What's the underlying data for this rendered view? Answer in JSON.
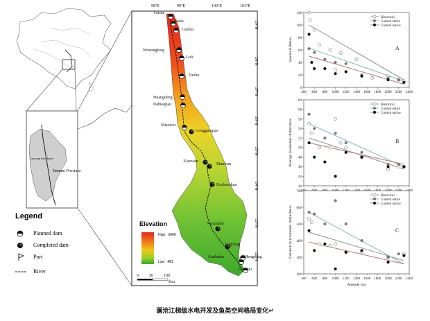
{
  "caption": "澜沧江梯级水电开发及鱼类空间格局变化↵",
  "map": {
    "lon_labels": [
      "98°E",
      "99°E",
      "100°E",
      "101°E"
    ],
    "lat_labels": [
      "29°N",
      "28°N",
      "27°N",
      "26°N",
      "25°N",
      "24°N",
      "23°N",
      "22°N"
    ],
    "province_label": "Yunnan Province",
    "basin_label": "Lancang river basin",
    "elevation_title": "Elevation",
    "elevation_high": "High : 5849",
    "elevation_low": "Low : 481",
    "scale_labels": [
      "0",
      "50",
      "100"
    ],
    "scale_unit": "Km",
    "sites": [
      {
        "name": "Gusue",
        "type": "planned"
      },
      {
        "name": "Baita",
        "type": "planned"
      },
      {
        "name": "Gushui",
        "type": "planned"
      },
      {
        "name": "Wunonglong",
        "type": "planned"
      },
      {
        "name": "Lidi",
        "type": "planned"
      },
      {
        "name": "Tuoba",
        "type": "planned"
      },
      {
        "name": "Huangdeng",
        "type": "planned"
      },
      {
        "name": "Dahuaqiao",
        "type": "planned"
      },
      {
        "name": "Miaowei",
        "type": "planned"
      },
      {
        "name": "Gongguoqiao",
        "type": "completed"
      },
      {
        "name": "Xiaowan",
        "type": "completed"
      },
      {
        "name": "Manwan",
        "type": "completed"
      },
      {
        "name": "Dachaoshan",
        "type": "completed"
      },
      {
        "name": "Nuozhadu",
        "type": "completed"
      },
      {
        "name": "Jinghong",
        "type": "completed"
      },
      {
        "name": "Ganlanba",
        "type": "planned"
      },
      {
        "name": "Mengsong",
        "type": "planned"
      },
      {
        "name": "Guanlei",
        "type": "planned"
      }
    ]
  },
  "legend": {
    "title": "Legend",
    "items": [
      {
        "label": "Planned dam",
        "icon": "half-filled-circle-icon"
      },
      {
        "label": "Completed dam",
        "icon": "filled-circle-icon"
      },
      {
        "label": "Port",
        "icon": "port-flag-icon"
      },
      {
        "label": "River",
        "icon": "river-line-icon"
      }
    ]
  },
  "chart_data": [
    {
      "type": "scatter",
      "panel": "A",
      "ylabel": "Species richness",
      "xlabel": "",
      "xlim": [
        400,
        2400
      ],
      "ylim": [
        0,
        120
      ],
      "xticks": [
        400,
        600,
        800,
        1000,
        1200,
        1400,
        1600,
        1800,
        2000,
        2200,
        2400
      ],
      "yticks": [
        0,
        20,
        40,
        60,
        80,
        100,
        120
      ],
      "legend": [
        "Historical",
        "Current entire",
        "Current native"
      ],
      "series": [
        {
          "name": "Historical",
          "color": "#8e8e8e",
          "marker": "open",
          "points": [
            [
              500,
              120
            ],
            [
              520,
              108
            ],
            [
              600,
              92
            ],
            [
              700,
              68
            ],
            [
              900,
              60
            ],
            [
              1000,
              28
            ],
            [
              1100,
              55
            ],
            [
              1400,
              45
            ],
            [
              1700,
              15
            ],
            [
              2000,
              18
            ],
            [
              2200,
              12
            ],
            [
              2300,
              10
            ]
          ],
          "trend": [
            [
              500,
              100
            ],
            [
              2300,
              12
            ]
          ]
        },
        {
          "name": "Current entire",
          "color": "#7fb8b0",
          "marker": "filled",
          "points": [
            [
              500,
              62
            ],
            [
              600,
              56
            ],
            [
              800,
              45
            ],
            [
              1000,
              40
            ],
            [
              1200,
              38
            ],
            [
              1500,
              20
            ],
            [
              2000,
              15
            ],
            [
              2200,
              12
            ]
          ],
          "trend": [
            [
              500,
              63
            ],
            [
              2300,
              10
            ]
          ]
        },
        {
          "name": "Current native",
          "color": "#b07474",
          "marker": "filled",
          "points": [
            [
              500,
              85
            ],
            [
              550,
              40
            ],
            [
              600,
              30
            ],
            [
              800,
              30
            ],
            [
              1000,
              22
            ],
            [
              1200,
              25
            ],
            [
              1500,
              18
            ],
            [
              2000,
              12
            ],
            [
              2300,
              8
            ]
          ],
          "trend": [
            [
              500,
              50
            ],
            [
              2300,
              5
            ]
          ]
        }
      ]
    },
    {
      "type": "scatter",
      "panel": "B",
      "ylabel": "Average taxonomic distinctness",
      "xlabel": "",
      "xlim": [
        400,
        2400
      ],
      "ylim": [
        42,
        60
      ],
      "xticks": [
        400,
        600,
        800,
        1000,
        1200,
        1400,
        1600,
        1800,
        2000,
        2200,
        2400
      ],
      "yticks": [
        42,
        44,
        46,
        48,
        50,
        52,
        54,
        56,
        58,
        60
      ],
      "legend": [
        "Historical",
        "Current entire",
        "Current native"
      ],
      "series": [
        {
          "name": "Historical",
          "color": "#8e8e8e",
          "marker": "open",
          "points": [
            [
              500,
              55
            ],
            [
              550,
              53
            ],
            [
              700,
              50
            ],
            [
              900,
              50
            ],
            [
              1000,
              56
            ],
            [
              1100,
              51
            ],
            [
              1200,
              50
            ],
            [
              1500,
              48
            ],
            [
              2000,
              45.5
            ],
            [
              2200,
              46
            ],
            [
              2300,
              46
            ]
          ],
          "trend": [
            [
              500,
              52
            ],
            [
              2300,
              45.5
            ]
          ]
        },
        {
          "name": "Current entire",
          "color": "#7fb8b0",
          "marker": "filled",
          "points": [
            [
              500,
              57
            ],
            [
              600,
              54
            ],
            [
              800,
              52
            ],
            [
              1000,
              53
            ],
            [
              1200,
              51
            ],
            [
              1500,
              49
            ],
            [
              2000,
              46.5
            ],
            [
              2200,
              46.5
            ]
          ],
          "trend": [
            [
              500,
              55
            ],
            [
              2300,
              46
            ]
          ]
        },
        {
          "name": "Current native",
          "color": "#b07474",
          "marker": "filled",
          "points": [
            [
              500,
              51
            ],
            [
              600,
              48
            ],
            [
              800,
              47
            ],
            [
              1000,
              44
            ],
            [
              1200,
              49
            ],
            [
              1500,
              48
            ],
            [
              2000,
              46
            ],
            [
              2300,
              46
            ]
          ],
          "trend": [
            [
              500,
              51
            ],
            [
              2300,
              46.5
            ]
          ]
        }
      ]
    },
    {
      "type": "scatter",
      "panel": "C",
      "ylabel": "Variation in taxonomic distinctness",
      "xlabel": "Altitude (m)",
      "xlim": [
        400,
        2400
      ],
      "ylim": [
        200,
        700
      ],
      "xticks": [
        400,
        600,
        800,
        1000,
        1200,
        1400,
        1600,
        1800,
        2000,
        2200,
        2400
      ],
      "yticks": [
        200,
        300,
        400,
        500,
        600,
        700
      ],
      "legend": [
        "Historical",
        "Current entire",
        "Current native"
      ],
      "series": [
        {
          "name": "Historical",
          "color": "#8e8e8e",
          "marker": "open",
          "points": [
            [
              500,
              530
            ],
            [
              550,
              510
            ],
            [
              700,
              380
            ],
            [
              900,
              370
            ],
            [
              1000,
              380
            ],
            [
              1200,
              330
            ],
            [
              1500,
              330
            ],
            [
              2000,
              300
            ],
            [
              2200,
              280
            ],
            [
              2300,
              320
            ]
          ],
          "trend": [
            [
              500,
              450
            ],
            [
              2300,
              280
            ]
          ]
        },
        {
          "name": "Current entire",
          "color": "#7fb8b0",
          "marker": "filled",
          "points": [
            [
              500,
              570
            ],
            [
              600,
              560
            ],
            [
              800,
              500
            ],
            [
              1000,
              640
            ],
            [
              1200,
              500
            ],
            [
              1500,
              400
            ],
            [
              2000,
              300
            ],
            [
              2200,
              320
            ]
          ],
          "trend": [
            [
              500,
              570
            ],
            [
              2300,
              260
            ]
          ]
        },
        {
          "name": "Current native",
          "color": "#b07474",
          "marker": "filled",
          "points": [
            [
              500,
              460
            ],
            [
              600,
              340
            ],
            [
              800,
              380
            ],
            [
              1000,
              230
            ],
            [
              1200,
              330
            ],
            [
              1500,
              340
            ],
            [
              2000,
              270
            ],
            [
              2300,
              310
            ]
          ],
          "trend": [
            [
              500,
              390
            ],
            [
              2300,
              260
            ]
          ]
        }
      ]
    }
  ]
}
